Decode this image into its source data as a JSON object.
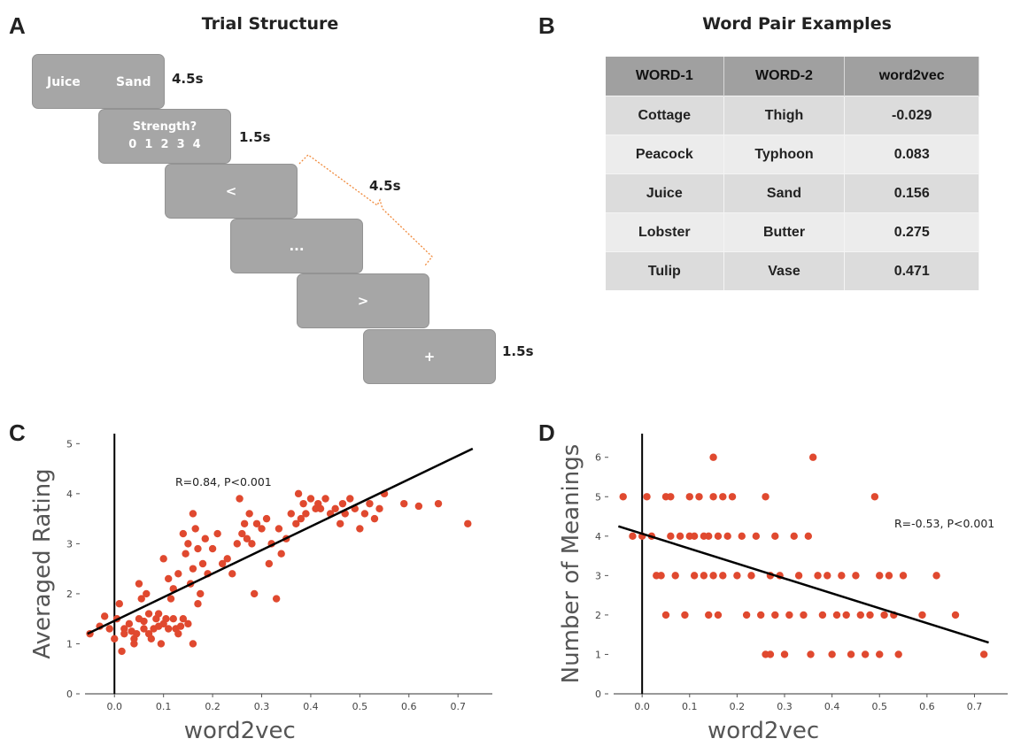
{
  "panel_a": {
    "letter": "A",
    "title": "Trial Structure",
    "screens": [
      {
        "left_text": "Juice",
        "right_text": "Sand",
        "duration": "4.5s"
      },
      {
        "line1": "Strength?",
        "line2": "0  1  2  3  4",
        "duration": "1.5s"
      },
      {
        "text": "<"
      },
      {
        "text": "..."
      },
      {
        "text": ">"
      },
      {
        "text": "+",
        "duration": "1.5s"
      }
    ],
    "bracket_duration": "4.5s"
  },
  "panel_b": {
    "letter": "B",
    "title": "Word Pair Examples",
    "headers": [
      "WORD-1",
      "WORD-2",
      "word2vec"
    ],
    "rows": [
      [
        "Cottage",
        "Thigh",
        "-0.029"
      ],
      [
        "Peacock",
        "Typhoon",
        "0.083"
      ],
      [
        "Juice",
        "Sand",
        "0.156"
      ],
      [
        "Lobster",
        "Butter",
        "0.275"
      ],
      [
        "Tulip",
        "Vase",
        "0.471"
      ]
    ]
  },
  "chart_data": [
    {
      "panel": "C",
      "type": "scatter",
      "xlabel": "word2vec",
      "ylabel": "Averaged Rating",
      "xlim": [
        -0.06,
        0.77
      ],
      "ylim": [
        0,
        5.2
      ],
      "xticks": [
        "0.0",
        "0.1",
        "0.2",
        "0.3",
        "0.4",
        "0.5",
        "0.6",
        "0.7"
      ],
      "yticks": [
        "0",
        "1",
        "2",
        "3",
        "4",
        "5"
      ],
      "annotation": "R=0.84, P<0.001",
      "fit_line": {
        "x": [
          -0.055,
          0.73
        ],
        "y": [
          1.2,
          4.9
        ]
      },
      "color": "#e0492f",
      "points": [
        [
          -0.05,
          1.2
        ],
        [
          -0.03,
          1.35
        ],
        [
          -0.02,
          1.55
        ],
        [
          -0.01,
          1.3
        ],
        [
          0.0,
          1.1
        ],
        [
          0.005,
          1.5
        ],
        [
          0.01,
          1.8
        ],
        [
          0.015,
          0.85
        ],
        [
          0.02,
          1.3
        ],
        [
          0.02,
          1.2
        ],
        [
          0.03,
          1.4
        ],
        [
          0.035,
          1.25
        ],
        [
          0.04,
          1.0
        ],
        [
          0.04,
          1.1
        ],
        [
          0.045,
          1.2
        ],
        [
          0.05,
          1.5
        ],
        [
          0.05,
          2.2
        ],
        [
          0.055,
          1.9
        ],
        [
          0.06,
          1.3
        ],
        [
          0.06,
          1.45
        ],
        [
          0.065,
          2.0
        ],
        [
          0.07,
          1.6
        ],
        [
          0.07,
          1.2
        ],
        [
          0.075,
          1.1
        ],
        [
          0.08,
          1.3
        ],
        [
          0.085,
          1.5
        ],
        [
          0.09,
          1.35
        ],
        [
          0.09,
          1.6
        ],
        [
          0.095,
          1.0
        ],
        [
          0.1,
          1.4
        ],
        [
          0.1,
          2.7
        ],
        [
          0.105,
          1.5
        ],
        [
          0.11,
          1.3
        ],
        [
          0.11,
          2.3
        ],
        [
          0.115,
          1.9
        ],
        [
          0.12,
          1.5
        ],
        [
          0.12,
          2.1
        ],
        [
          0.125,
          1.3
        ],
        [
          0.13,
          1.2
        ],
        [
          0.13,
          2.4
        ],
        [
          0.135,
          1.35
        ],
        [
          0.14,
          3.2
        ],
        [
          0.14,
          1.5
        ],
        [
          0.145,
          2.8
        ],
        [
          0.15,
          3.0
        ],
        [
          0.15,
          1.4
        ],
        [
          0.155,
          2.2
        ],
        [
          0.16,
          3.6
        ],
        [
          0.16,
          1.0
        ],
        [
          0.16,
          2.5
        ],
        [
          0.165,
          3.3
        ],
        [
          0.17,
          2.9
        ],
        [
          0.17,
          1.8
        ],
        [
          0.175,
          2.0
        ],
        [
          0.18,
          2.6
        ],
        [
          0.185,
          3.1
        ],
        [
          0.19,
          2.4
        ],
        [
          0.2,
          2.9
        ],
        [
          0.21,
          3.2
        ],
        [
          0.22,
          2.6
        ],
        [
          0.23,
          2.7
        ],
        [
          0.24,
          2.4
        ],
        [
          0.25,
          3.0
        ],
        [
          0.255,
          3.9
        ],
        [
          0.26,
          3.2
        ],
        [
          0.265,
          3.4
        ],
        [
          0.27,
          3.1
        ],
        [
          0.275,
          3.6
        ],
        [
          0.28,
          3.0
        ],
        [
          0.285,
          2.0
        ],
        [
          0.29,
          3.4
        ],
        [
          0.3,
          3.3
        ],
        [
          0.31,
          3.5
        ],
        [
          0.315,
          2.6
        ],
        [
          0.32,
          3.0
        ],
        [
          0.33,
          1.9
        ],
        [
          0.335,
          3.3
        ],
        [
          0.34,
          2.8
        ],
        [
          0.35,
          3.1
        ],
        [
          0.36,
          3.6
        ],
        [
          0.37,
          3.4
        ],
        [
          0.375,
          4.0
        ],
        [
          0.38,
          3.5
        ],
        [
          0.385,
          3.8
        ],
        [
          0.39,
          3.6
        ],
        [
          0.4,
          3.9
        ],
        [
          0.41,
          3.7
        ],
        [
          0.415,
          3.8
        ],
        [
          0.42,
          3.7
        ],
        [
          0.43,
          3.9
        ],
        [
          0.44,
          3.6
        ],
        [
          0.45,
          3.7
        ],
        [
          0.46,
          3.4
        ],
        [
          0.465,
          3.8
        ],
        [
          0.47,
          3.6
        ],
        [
          0.48,
          3.9
        ],
        [
          0.49,
          3.7
        ],
        [
          0.5,
          3.3
        ],
        [
          0.51,
          3.6
        ],
        [
          0.52,
          3.8
        ],
        [
          0.53,
          3.5
        ],
        [
          0.54,
          3.7
        ],
        [
          0.55,
          4.0
        ],
        [
          0.59,
          3.8
        ],
        [
          0.62,
          3.75
        ],
        [
          0.66,
          3.8
        ],
        [
          0.72,
          3.4
        ]
      ]
    },
    {
      "panel": "D",
      "type": "scatter",
      "xlabel": "word2vec",
      "ylabel": "Number of Meanings",
      "xlim": [
        -0.06,
        0.77
      ],
      "ylim": [
        0,
        6.6
      ],
      "xticks": [
        "0.0",
        "0.1",
        "0.2",
        "0.3",
        "0.4",
        "0.5",
        "0.6",
        "0.7"
      ],
      "yticks": [
        "0",
        "1",
        "2",
        "3",
        "4",
        "5",
        "6"
      ],
      "annotation": "R=-0.53, P<0.001",
      "fit_line": {
        "x": [
          -0.05,
          0.73
        ],
        "y": [
          4.25,
          1.3
        ]
      },
      "color": "#e0492f",
      "points": [
        [
          -0.04,
          5
        ],
        [
          -0.02,
          4
        ],
        [
          0.0,
          4
        ],
        [
          0.01,
          5
        ],
        [
          0.02,
          4
        ],
        [
          0.03,
          3
        ],
        [
          0.04,
          3
        ],
        [
          0.05,
          5
        ],
        [
          0.05,
          2
        ],
        [
          0.06,
          4
        ],
        [
          0.06,
          5
        ],
        [
          0.07,
          3
        ],
        [
          0.08,
          4
        ],
        [
          0.09,
          2
        ],
        [
          0.1,
          4
        ],
        [
          0.1,
          5
        ],
        [
          0.11,
          3
        ],
        [
          0.11,
          4
        ],
        [
          0.12,
          5
        ],
        [
          0.13,
          3
        ],
        [
          0.13,
          4
        ],
        [
          0.14,
          4
        ],
        [
          0.14,
          2
        ],
        [
          0.15,
          5
        ],
        [
          0.15,
          6
        ],
        [
          0.15,
          3
        ],
        [
          0.16,
          4
        ],
        [
          0.16,
          2
        ],
        [
          0.17,
          5
        ],
        [
          0.17,
          3
        ],
        [
          0.18,
          4
        ],
        [
          0.19,
          5
        ],
        [
          0.2,
          3
        ],
        [
          0.21,
          4
        ],
        [
          0.22,
          2
        ],
        [
          0.23,
          3
        ],
        [
          0.24,
          4
        ],
        [
          0.25,
          2
        ],
        [
          0.26,
          5
        ],
        [
          0.26,
          1
        ],
        [
          0.27,
          3
        ],
        [
          0.27,
          1
        ],
        [
          0.28,
          4
        ],
        [
          0.28,
          2
        ],
        [
          0.29,
          3
        ],
        [
          0.3,
          1
        ],
        [
          0.31,
          2
        ],
        [
          0.32,
          4
        ],
        [
          0.33,
          3
        ],
        [
          0.34,
          2
        ],
        [
          0.35,
          4
        ],
        [
          0.355,
          1
        ],
        [
          0.36,
          6
        ],
        [
          0.37,
          3
        ],
        [
          0.38,
          2
        ],
        [
          0.39,
          3
        ],
        [
          0.4,
          1
        ],
        [
          0.41,
          2
        ],
        [
          0.42,
          3
        ],
        [
          0.43,
          2
        ],
        [
          0.44,
          1
        ],
        [
          0.45,
          3
        ],
        [
          0.46,
          2
        ],
        [
          0.47,
          1
        ],
        [
          0.48,
          2
        ],
        [
          0.49,
          5
        ],
        [
          0.5,
          1
        ],
        [
          0.5,
          3
        ],
        [
          0.51,
          2
        ],
        [
          0.52,
          3
        ],
        [
          0.53,
          2
        ],
        [
          0.54,
          1
        ],
        [
          0.55,
          3
        ],
        [
          0.59,
          2
        ],
        [
          0.62,
          3
        ],
        [
          0.66,
          2
        ],
        [
          0.72,
          1
        ]
      ]
    }
  ]
}
